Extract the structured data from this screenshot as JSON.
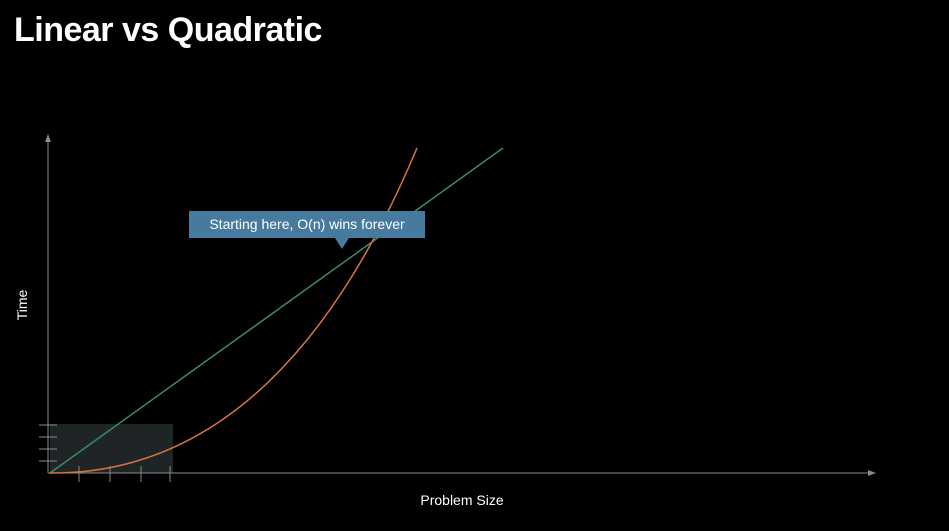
{
  "title": "Linear vs Quadratic",
  "y_axis_label": "Time",
  "x_axis_label": "Problem Size",
  "callout": "Starting here, O(n) wins forever",
  "colors": {
    "background": "#000000",
    "axis": "#8a8a8a",
    "linear_line": "#3f8a63",
    "quadratic_curve": "#d9743e",
    "zoom_box": "#1f2426",
    "callout_fill": "#467a9e"
  }
}
